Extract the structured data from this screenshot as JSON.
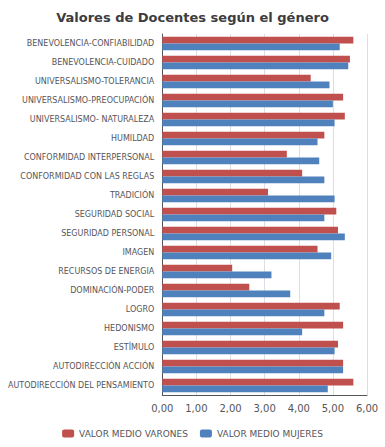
{
  "chart_data": {
    "type": "bar",
    "orientation": "horizontal",
    "title": "Valores de Docentes según el género",
    "categories": [
      "BENEVOLENCIA-CONFIABILIDAD",
      "BENEVOLENCIA-CUIDADO",
      "UNIVERSALISMO-TOLERANCIA",
      "UNIVERSALISMO-PREOCUPACIÓN",
      "UNIVERSALISMO- NATURALEZA",
      "HUMILDAD",
      "CONFORMIDAD INTERPERSONAL",
      "CONFORMIDAD CON LAS REGLAS",
      "TRADICIÓN",
      "SEGURIDAD SOCIAL",
      "SEGURIDAD PERSONAL",
      "IMAGEN",
      "RECURSOS DE ENERGIA",
      "DOMINACIÓN-PODER",
      "LOGRO",
      "HEDONISMO",
      "ESTÍMULO",
      "AUTODIRECCIÓN ACCIÓN",
      "AUTODIRECCIÓN DEL PENSAMIENTO"
    ],
    "series": [
      {
        "name": "VALOR MEDIO VARONES",
        "color": "#C0504D",
        "values": [
          5.6,
          5.5,
          4.35,
          5.3,
          5.35,
          4.75,
          3.65,
          4.1,
          3.1,
          5.1,
          5.15,
          4.55,
          2.05,
          2.55,
          5.2,
          5.3,
          5.15,
          5.3,
          5.6
        ]
      },
      {
        "name": "VALOR MEDIO MUJERES",
        "color": "#4F81BD",
        "values": [
          5.2,
          5.45,
          4.9,
          5.0,
          5.05,
          4.55,
          4.6,
          4.75,
          5.05,
          4.75,
          5.35,
          4.95,
          3.2,
          3.75,
          4.75,
          4.1,
          5.05,
          5.3,
          4.85
        ]
      }
    ],
    "xlim": [
      0,
      6.0
    ],
    "xticks": [
      {
        "value": 0.0,
        "label": "0,00"
      },
      {
        "value": 1.0,
        "label": "1,00"
      },
      {
        "value": 2.0,
        "label": "2,00"
      },
      {
        "value": 3.0,
        "label": "3,00"
      },
      {
        "value": 4.0,
        "label": "4,00"
      },
      {
        "value": 5.0,
        "label": "5,00"
      },
      {
        "value": 6.0,
        "label": "6,00"
      }
    ],
    "grid": true,
    "legend": "bottom"
  }
}
